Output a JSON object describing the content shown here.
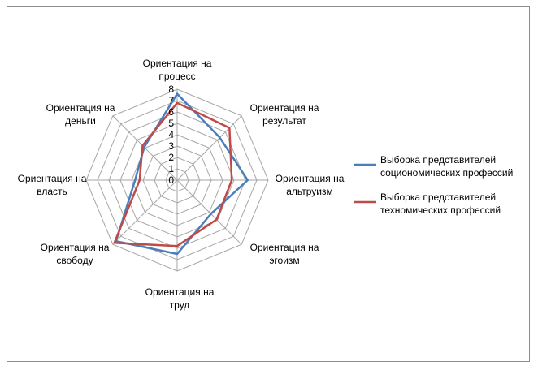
{
  "chart_data": {
    "type": "radar",
    "categories": [
      [
        "Ориентация на",
        "процесс"
      ],
      [
        "Ориентация на",
        "результат"
      ],
      [
        "Ориентация на",
        "альтруизм"
      ],
      [
        "Ориентация на",
        "эгоизм"
      ],
      [
        "Ориентация на",
        "труд"
      ],
      [
        "Ориентация на",
        "свободу"
      ],
      [
        "Ориентация на",
        "власть"
      ],
      [
        "Ориентация на",
        "деньги"
      ]
    ],
    "ticks": [
      "0",
      "1",
      "2",
      "3",
      "4",
      "5",
      "6",
      "7",
      "8"
    ],
    "rmax": 8,
    "series": [
      {
        "name": [
          "Выборка представителей",
          "социономических профессий"
        ],
        "color": "#4a7ebb",
        "values": [
          7.6,
          5.3,
          6.2,
          4.2,
          6.5,
          7.6,
          3.7,
          4.1
        ]
      },
      {
        "name": [
          "Выборка представителей",
          "техномических профессий"
        ],
        "color": "#be4b48",
        "values": [
          6.8,
          6.5,
          4.8,
          4.9,
          5.8,
          7.8,
          3.3,
          4.3
        ]
      }
    ],
    "grid": true,
    "legend": "right"
  }
}
